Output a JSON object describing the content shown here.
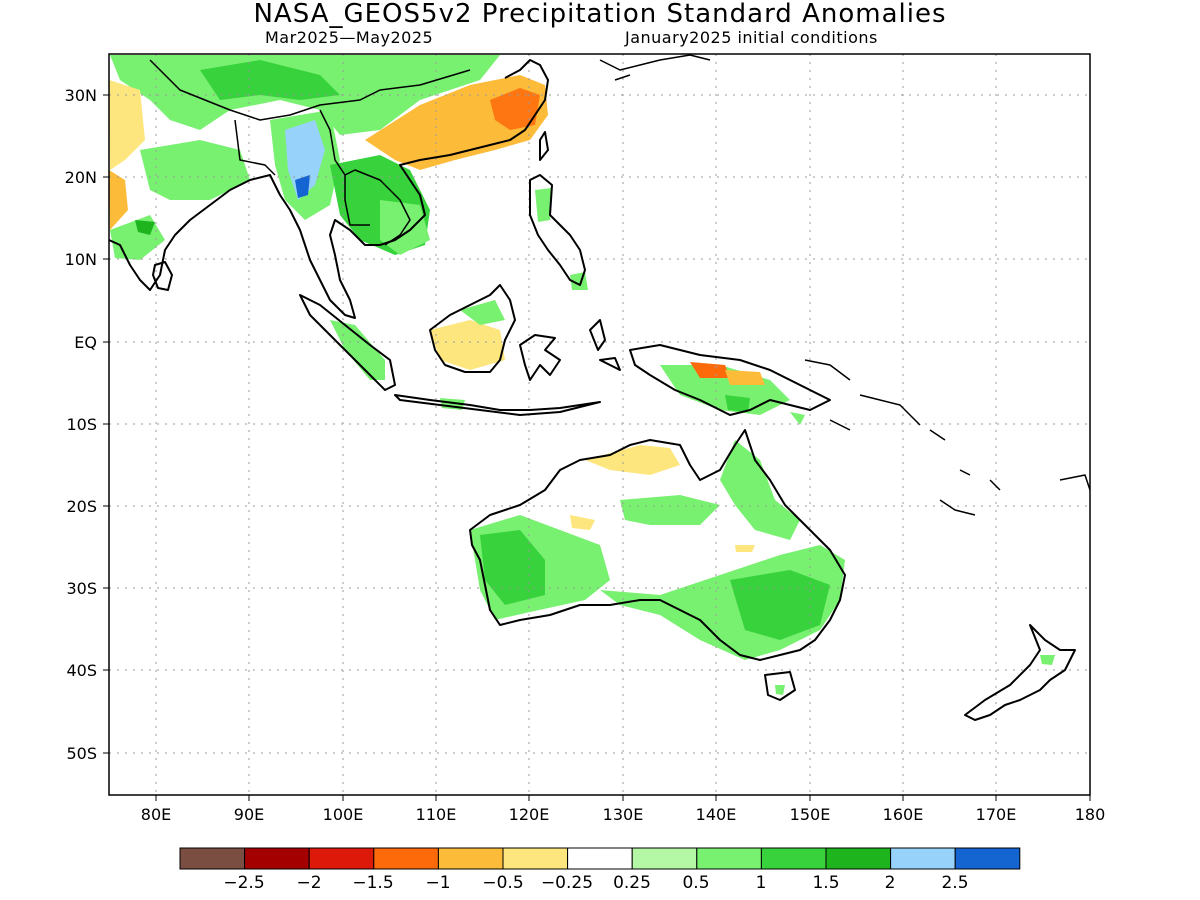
{
  "title": "NASA_GEOS5v2 Precipitation Standard Anomalies",
  "period": "Mar2025—May2025",
  "initial_conditions": "January2025 initial conditions",
  "axes": {
    "x_ticks": [
      "80E",
      "90E",
      "100E",
      "110E",
      "120E",
      "130E",
      "140E",
      "150E",
      "160E",
      "170E",
      "180"
    ],
    "y_ticks": [
      "30N",
      "20N",
      "10N",
      "EQ",
      "10S",
      "20S",
      "30S",
      "40S",
      "50S"
    ],
    "lon_range": [
      75,
      180
    ],
    "lat_range": [
      -55,
      35
    ],
    "grid": "dotted"
  },
  "colorbar": {
    "colors": [
      "#7b4e42",
      "#a40000",
      "#dd1a0a",
      "#fd6a0a",
      "#fdbb3a",
      "#fde67d",
      "#ffffff",
      "#b4f8a6",
      "#78f070",
      "#37d23c",
      "#1eb41e",
      "#96d2fa",
      "#1464d2"
    ],
    "labels": [
      "−2.5",
      "−2",
      "−1.5",
      "−1",
      "−0.5",
      "−0.25",
      "0.25",
      "0.5",
      "1",
      "1.5",
      "2",
      "2.5"
    ]
  },
  "colors": {
    "grid": "#9a9a9a",
    "coast": "#000000"
  }
}
